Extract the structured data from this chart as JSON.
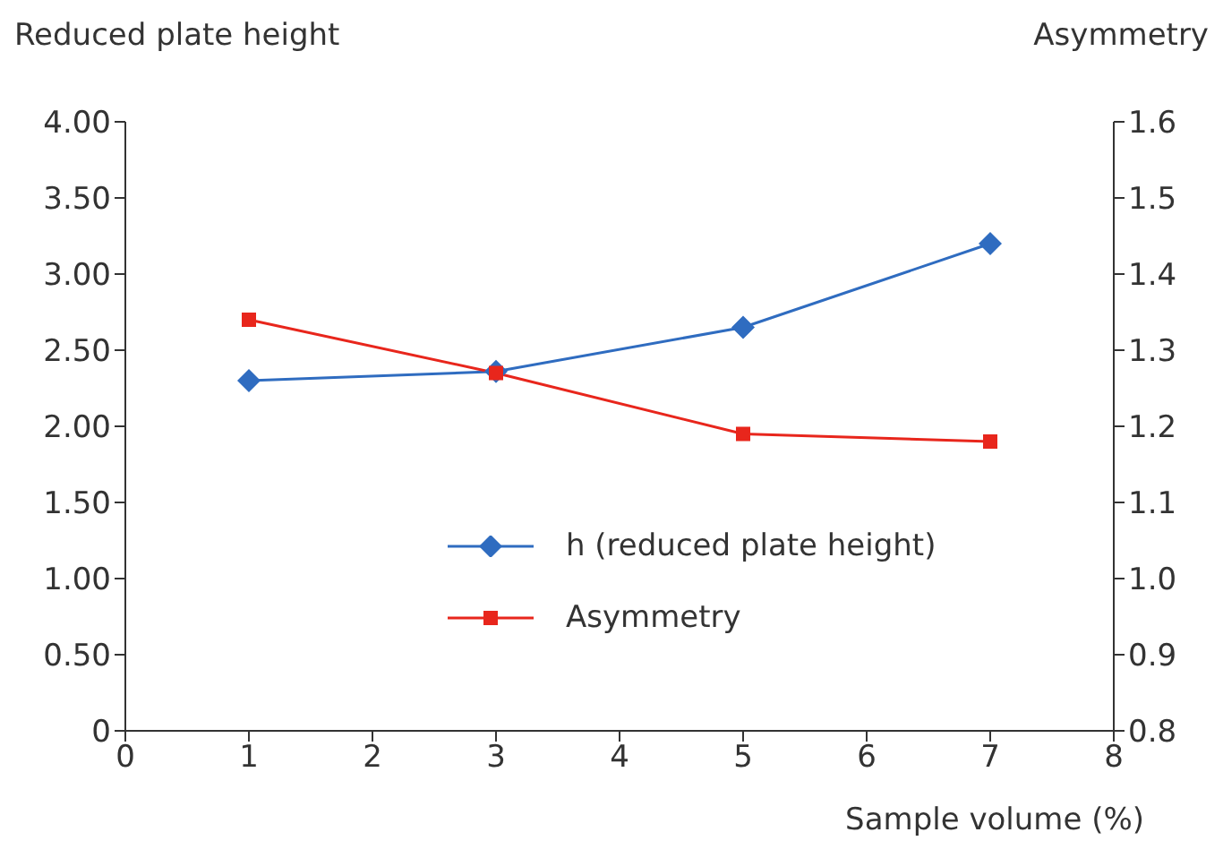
{
  "chart_data": {
    "type": "line",
    "xlabel": "Sample volume (%)",
    "ylabel": "Reduced plate height",
    "y2label": "Asymmetry",
    "x": [
      1,
      3,
      5,
      7
    ],
    "series": [
      {
        "name": "h (reduced plate height)",
        "color": "#2f6cc0",
        "values": [
          2.3,
          2.36,
          2.65,
          3.2
        ],
        "marker": "diamond"
      },
      {
        "name": "Asymmetry",
        "color": "#e8261c",
        "values": [
          1.34,
          1.27,
          1.19,
          1.18
        ],
        "axis": "y2",
        "marker": "square"
      }
    ],
    "xlim": [
      0,
      8
    ],
    "xticks": [
      0,
      1,
      2,
      3,
      4,
      5,
      6,
      7,
      8
    ],
    "ylim": [
      0,
      4
    ],
    "yticks": [
      0,
      {
        "value": 0.5,
        "label": "0.50"
      },
      {
        "value": 1,
        "label": "1.00"
      },
      {
        "value": 1.5,
        "label": "1.50"
      },
      {
        "value": 2,
        "label": "2.00"
      },
      {
        "value": 2.5,
        "label": "2.50"
      },
      {
        "value": 3,
        "label": "3.00"
      },
      {
        "value": 3.5,
        "label": "3.50"
      },
      {
        "value": 4,
        "label": "4.00"
      }
    ],
    "y2lim": [
      0.8,
      1.6
    ],
    "y2ticks": [
      0.8,
      0.9,
      {
        "value": 1,
        "label": "1.0"
      },
      1.1,
      1.2,
      1.3,
      1.4,
      1.5,
      1.6
    ],
    "grid": false,
    "legend": "center",
    "line_style": "solid"
  }
}
